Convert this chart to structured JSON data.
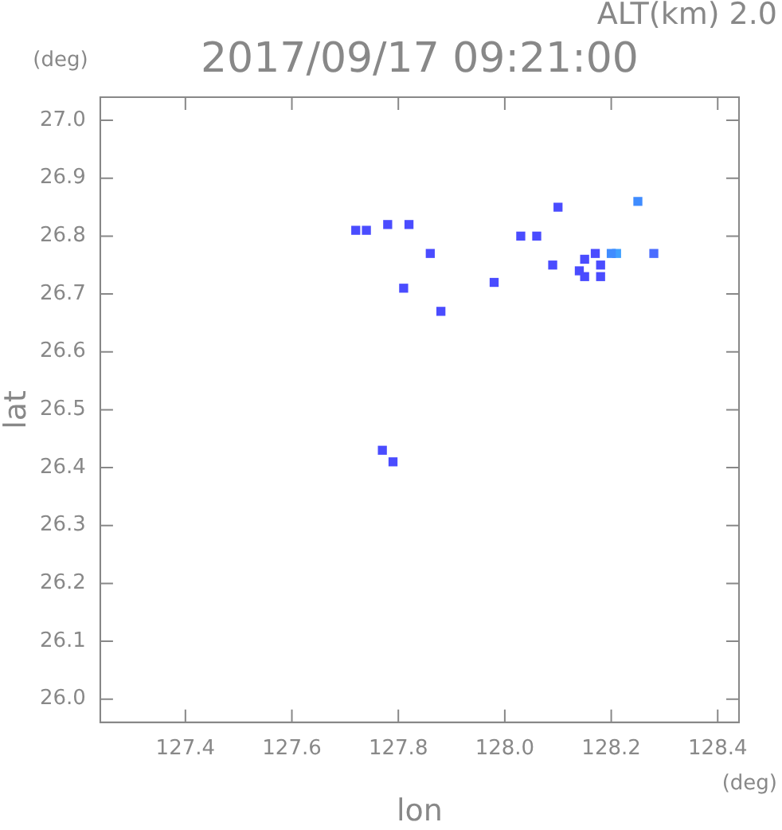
{
  "chart_data": {
    "type": "scatter",
    "title": "2017/09/17 09:21:00",
    "subtitle": "ALT(km) 2.0",
    "xlabel": "lon",
    "ylabel": "lat",
    "annotations": [
      "(deg)",
      "(deg)"
    ],
    "xlim": [
      127.24,
      128.44
    ],
    "ylim": [
      25.96,
      27.04
    ],
    "xticks": [
      127.4,
      127.6,
      127.8,
      {
        "value": 128,
        "label": "128.0"
      },
      128.2,
      128.4
    ],
    "yticks": [
      {
        "value": 26,
        "label": "26.0"
      },
      26.1,
      26.2,
      26.3,
      26.4,
      26.5,
      26.6,
      26.7,
      26.8,
      26.9,
      {
        "value": 27,
        "label": "27.0"
      }
    ],
    "marker": "square",
    "series": [
      {
        "x": [
          128.1,
          128.25,
          128.06,
          128.03,
          128.21,
          128.28,
          128.2,
          128.17,
          128.15,
          128.18,
          128.14,
          128.15,
          128.09,
          127.98,
          127.86,
          127.81,
          127.88,
          127.78,
          127.82,
          127.72,
          127.74,
          128.18,
          127.77,
          127.79
        ],
        "values": [
          26.85,
          26.86,
          26.8,
          26.8,
          26.77,
          26.77,
          26.77,
          26.77,
          26.76,
          26.75,
          26.74,
          26.73,
          26.75,
          26.72,
          26.77,
          26.71,
          26.67,
          26.82,
          26.82,
          26.81,
          26.81,
          26.73,
          26.43,
          26.41
        ],
        "colors": [
          "#4a4cff",
          "#3f8cff",
          "#4a4cff",
          "#4a4cff",
          "#3fa0ff",
          "#4a6cff",
          "#3f8cff",
          "#4a4cff",
          "#4a4cff",
          "#4a4cff",
          "#4a4cff",
          "#4a4cff",
          "#4a4cff",
          "#4a4cff",
          "#4a4cff",
          "#4a4cff",
          "#4a4cff",
          "#4a4cff",
          "#4a4cff",
          "#4a4cff",
          "#4a4cff",
          "#4a4cff",
          "#4a4cff",
          "#4a4cff"
        ]
      }
    ]
  }
}
